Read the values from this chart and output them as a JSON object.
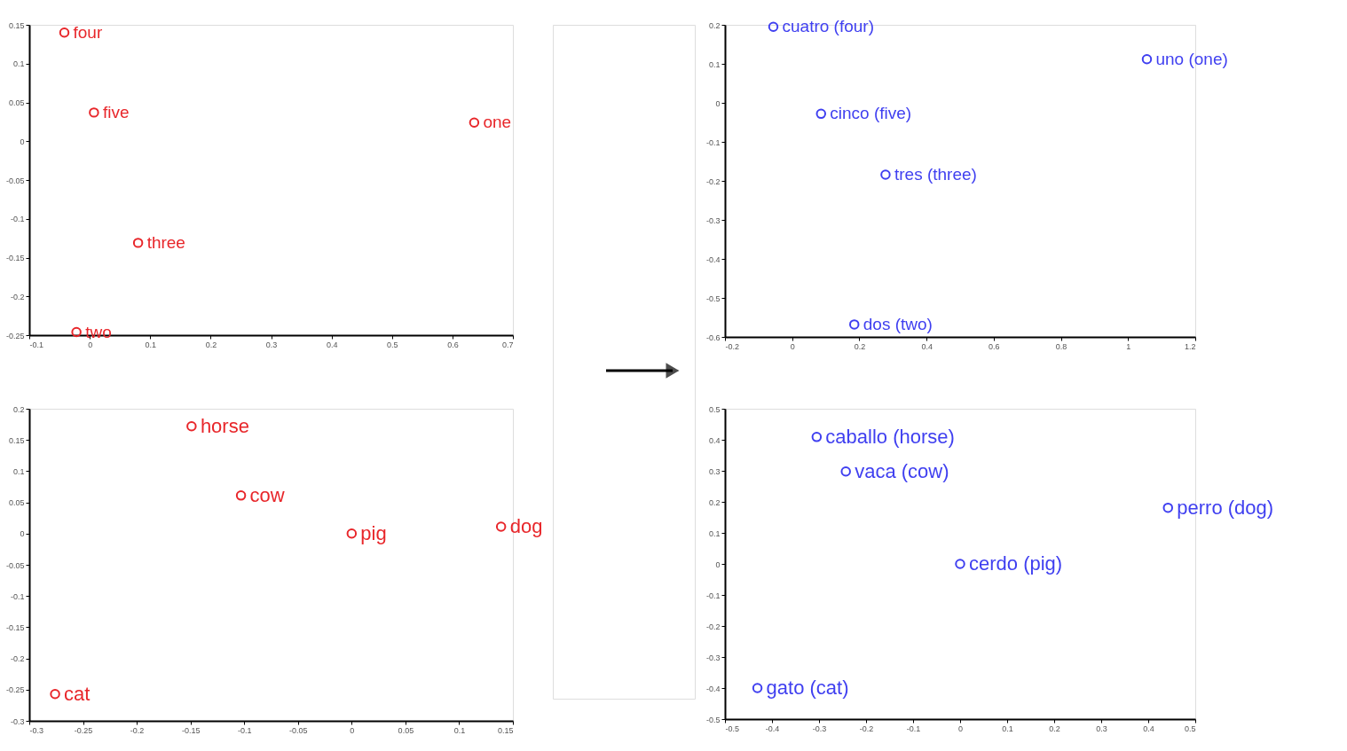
{
  "chart_data": [
    {
      "type": "scatter",
      "marker": "circle",
      "grid": false,
      "xlim": [
        -0.1,
        0.7
      ],
      "ylim": [
        -0.25,
        0.15
      ],
      "xticks": [
        -0.1,
        0,
        0.1,
        0.2,
        0.3,
        0.4,
        0.5,
        0.6,
        0.7
      ],
      "yticks": [
        -0.25,
        -0.2,
        -0.15,
        -0.1,
        -0.05,
        0,
        0.05,
        0.1,
        0.15
      ],
      "series": [
        {
          "color": "#e8262a",
          "x": [
            -0.042,
            0.007,
            0.636,
            0.08,
            -0.022
          ],
          "values": [
            0.14,
            0.037,
            0.024,
            -0.131,
            -0.246
          ]
        }
      ],
      "annotations": [
        {
          "text": "four",
          "x": -0.042,
          "y": 0.14
        },
        {
          "text": "five",
          "x": 0.007,
          "y": 0.037
        },
        {
          "text": "one",
          "x": 0.636,
          "y": 0.024
        },
        {
          "text": "three",
          "x": 0.08,
          "y": -0.131
        },
        {
          "text": "two",
          "x": -0.022,
          "y": -0.246
        }
      ]
    },
    {
      "type": "scatter",
      "marker": "circle",
      "grid": false,
      "xlim": [
        -0.2,
        1.2
      ],
      "ylim": [
        -0.6,
        0.2
      ],
      "xticks": [
        -0.2,
        0,
        0.2,
        0.4,
        0.6,
        0.8,
        1,
        1.2
      ],
      "yticks": [
        -0.6,
        -0.5,
        -0.4,
        -0.3,
        -0.2,
        -0.1,
        0,
        0.1,
        0.2
      ],
      "series": [
        {
          "color": "#3f3ff0",
          "x": [
            -0.056,
            1.056,
            0.086,
            0.278,
            0.185
          ],
          "values": [
            0.195,
            0.112,
            -0.028,
            -0.184,
            -0.568
          ]
        }
      ],
      "annotations": [
        {
          "text": "cuatro (four)",
          "x": -0.056,
          "y": 0.195
        },
        {
          "text": "uno (one)",
          "x": 1.056,
          "y": 0.112
        },
        {
          "text": "cinco (five)",
          "x": 0.086,
          "y": -0.028
        },
        {
          "text": "tres (three)",
          "x": 0.278,
          "y": -0.184
        },
        {
          "text": "dos (two)",
          "x": 0.185,
          "y": -0.568
        }
      ]
    },
    {
      "type": "scatter",
      "marker": "circle",
      "grid": false,
      "xlim": [
        -0.3,
        0.15
      ],
      "ylim": [
        -0.3,
        0.2
      ],
      "xticks": [
        -0.3,
        -0.25,
        -0.2,
        -0.15,
        -0.1,
        -0.05,
        0,
        0.05,
        0.1,
        0.15
      ],
      "yticks": [
        -0.3,
        -0.25,
        -0.2,
        -0.15,
        -0.1,
        -0.05,
        0,
        0.05,
        0.1,
        0.15,
        0.2
      ],
      "series": [
        {
          "color": "#e8262a",
          "x": [
            -0.149,
            -0.103,
            0,
            0.139,
            -0.276
          ],
          "values": [
            0.172,
            0.061,
            0,
            0.011,
            -0.257
          ]
        }
      ],
      "annotations": [
        {
          "text": "horse",
          "x": -0.149,
          "y": 0.172
        },
        {
          "text": "cow",
          "x": -0.103,
          "y": 0.061
        },
        {
          "text": "pig",
          "x": 0,
          "y": 0
        },
        {
          "text": "dog",
          "x": 0.139,
          "y": 0.011
        },
        {
          "text": "cat",
          "x": -0.276,
          "y": -0.257
        }
      ]
    },
    {
      "type": "scatter",
      "marker": "circle",
      "grid": false,
      "xlim": [
        -0.5,
        0.5
      ],
      "ylim": [
        -0.5,
        0.5
      ],
      "xticks": [
        -0.5,
        -0.4,
        -0.3,
        -0.2,
        -0.1,
        0,
        0.1,
        0.2,
        0.3,
        0.4,
        0.5
      ],
      "yticks": [
        -0.5,
        -0.4,
        -0.3,
        -0.2,
        -0.1,
        0,
        0.1,
        0.2,
        0.3,
        0.4,
        0.5
      ],
      "series": [
        {
          "color": "#3f3ff0",
          "x": [
            -0.305,
            -0.243,
            0.442,
            0,
            -0.431
          ],
          "values": [
            0.409,
            0.298,
            0.181,
            0,
            -0.4
          ]
        }
      ],
      "annotations": [
        {
          "text": "caballo (horse)",
          "x": -0.305,
          "y": 0.409
        },
        {
          "text": "vaca (cow)",
          "x": -0.243,
          "y": 0.298
        },
        {
          "text": "perro (dog)",
          "x": 0.442,
          "y": 0.181
        },
        {
          "text": "cerdo (pig)",
          "x": 0,
          "y": 0
        },
        {
          "text": "gato (cat)",
          "x": -0.431,
          "y": -0.4
        }
      ]
    }
  ]
}
